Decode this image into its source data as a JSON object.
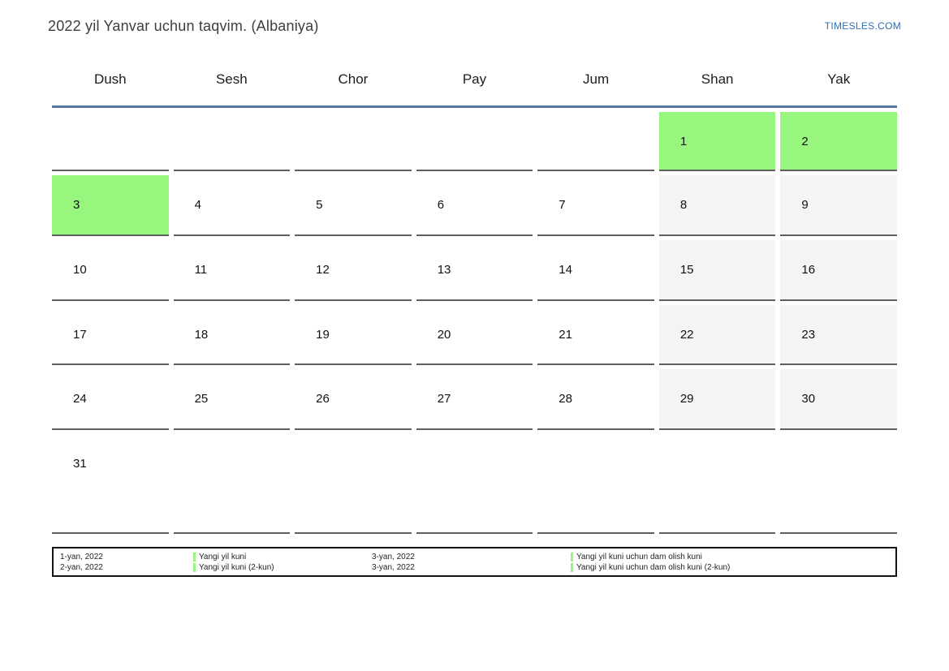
{
  "header": {
    "title": "2022 yil Yanvar uchun taqvim. (Albaniya)",
    "site_link": "TIMESLES.COM"
  },
  "weekdays": [
    "Dush",
    "Sesh",
    "Chor",
    "Pay",
    "Jum",
    "Shan",
    "Yak"
  ],
  "calendar": {
    "weeks": [
      [
        "",
        "",
        "",
        "",
        "",
        "1",
        "2"
      ],
      [
        "3",
        "4",
        "5",
        "6",
        "7",
        "8",
        "9"
      ],
      [
        "10",
        "11",
        "12",
        "13",
        "14",
        "15",
        "16"
      ],
      [
        "17",
        "18",
        "19",
        "20",
        "21",
        "22",
        "23"
      ],
      [
        "24",
        "25",
        "26",
        "27",
        "28",
        "29",
        "30"
      ],
      [
        "31",
        "",
        "",
        "",
        "",
        "",
        ""
      ]
    ],
    "holiday_days": [
      "1",
      "2",
      "3"
    ],
    "weekend_days": [
      "8",
      "9",
      "15",
      "16",
      "22",
      "23",
      "29",
      "30"
    ]
  },
  "legend": {
    "entries": [
      {
        "date": "1-yan, 2022",
        "label": "Yangi yil kuni"
      },
      {
        "date": "2-yan, 2022",
        "label": "Yangi yil kuni (2-kun)"
      },
      {
        "date": "3-yan, 2022",
        "label": "Yangi yil kuni uchun dam olish kuni"
      },
      {
        "date": "3-yan, 2022",
        "label": "Yangi yil kuni uchun dam olish kuni (2-kun)"
      }
    ]
  },
  "colors": {
    "holiday_green": "#98f57e",
    "weekend_gray": "#f4f4f4",
    "header_line_blue": "#54779e",
    "cell_border_gray": "#5f5f5f",
    "link_blue": "#2e6db5"
  }
}
